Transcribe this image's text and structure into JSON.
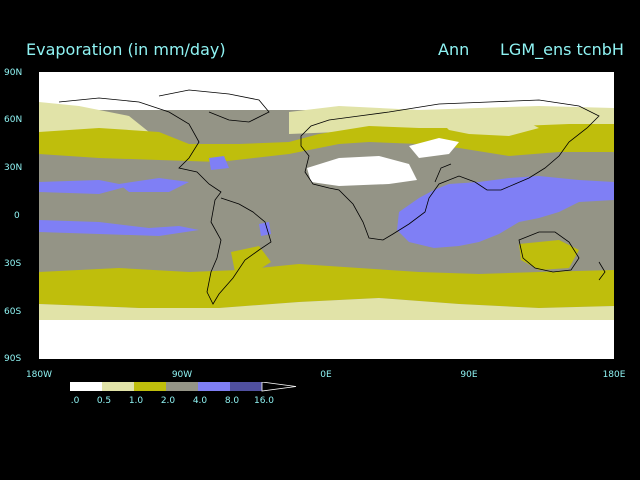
{
  "title": "Evaporation (in mm/day)",
  "season": "Ann",
  "run": "LGM_ens tcnbH",
  "lat_labels": [
    "90N",
    "60N",
    "30N",
    "0",
    "30S",
    "60S",
    "90S"
  ],
  "lon_labels": [
    "180W",
    "90W",
    "0E",
    "90E",
    "180E"
  ],
  "colorbar": {
    "labels": [
      ".0",
      "0.5",
      "1.0",
      "2.0",
      "4.0",
      "8.0",
      "16.0"
    ],
    "colors": [
      "#ffffff",
      "#e1e3a8",
      "#bfbe0c",
      "#949486",
      "#7f7ff5",
      "#50509f"
    ]
  },
  "palette": {
    "low": "#ffffff",
    "low_mid": "#e1e3a8",
    "mid": "#bfbe0c",
    "mid_high": "#949486",
    "high": "#7f7ff5",
    "coast": "#000000"
  }
}
